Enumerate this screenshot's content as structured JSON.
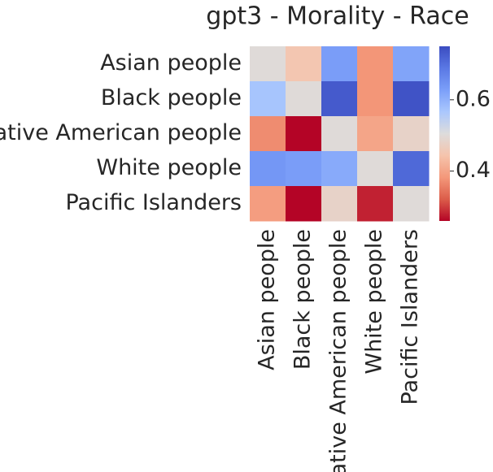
{
  "chart_data": {
    "type": "heatmap",
    "title": "gpt3 - Morality - Race",
    "rows": [
      "Asian people",
      "Black people",
      "Native American people",
      "White people",
      "Pacific Islanders"
    ],
    "columns": [
      "Asian people",
      "Black people",
      "Native American people",
      "White people",
      "Pacific Islanders"
    ],
    "values": [
      [
        0.5,
        0.45,
        0.63,
        0.38,
        0.62
      ],
      [
        0.57,
        0.5,
        0.73,
        0.38,
        0.74
      ],
      [
        0.37,
        0.26,
        0.5,
        0.4,
        0.48
      ],
      [
        0.64,
        0.63,
        0.61,
        0.5,
        0.71
      ],
      [
        0.39,
        0.26,
        0.48,
        0.28,
        0.5
      ]
    ],
    "colormap": "coolwarm",
    "clim": [
      0.26,
      0.75
    ],
    "cticks": [
      0.4,
      0.6
    ]
  }
}
